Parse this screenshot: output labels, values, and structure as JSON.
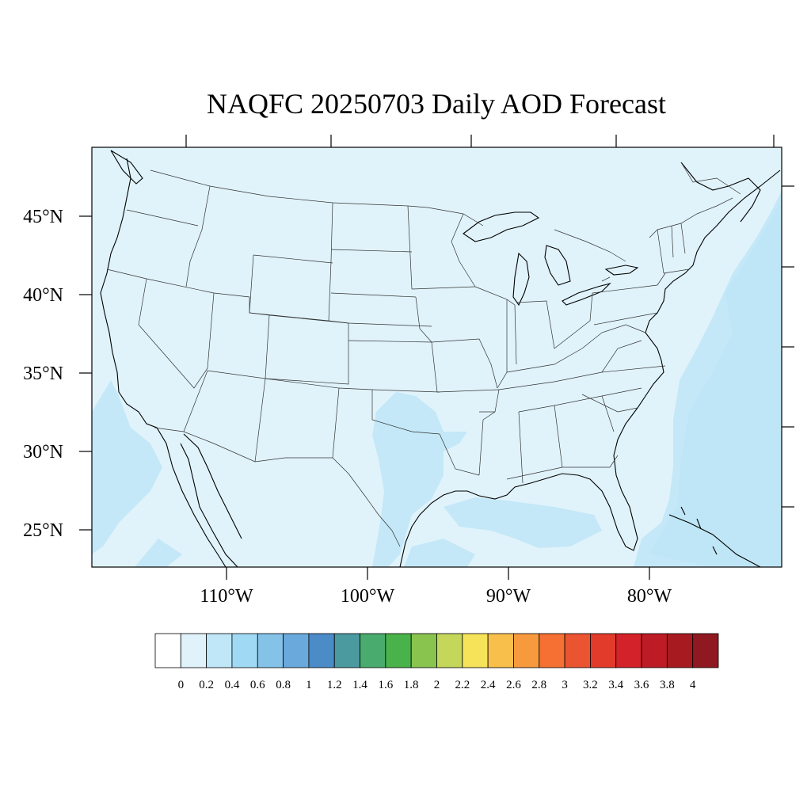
{
  "title": "NAQFC 20250703 Daily AOD Forecast",
  "map": {
    "projection": "lambert-conformal-like (curved parallels)",
    "lat_labels": [
      "45°N",
      "40°N",
      "35°N",
      "30°N",
      "25°N"
    ],
    "lon_labels": [
      "110°W",
      "100°W",
      "90°W",
      "80°W"
    ],
    "background_color": "#e0f3fb",
    "region": "Contiguous United States"
  },
  "colorbar": {
    "labels": [
      "0",
      "0.2",
      "0.4",
      "0.6",
      "0.8",
      "1",
      "1.2",
      "1.4",
      "1.6",
      "1.8",
      "2",
      "2.2",
      "2.4",
      "2.6",
      "2.8",
      "3",
      "3.2",
      "3.4",
      "3.6",
      "3.8",
      "4"
    ],
    "colors": [
      "#ffffff",
      "#e0f3fb",
      "#bfe7f8",
      "#a0d9f4",
      "#84c2e8",
      "#6aa9dc",
      "#4a8bc8",
      "#4a9aa0",
      "#4aab6e",
      "#4ab24a",
      "#88c44e",
      "#c4d75a",
      "#f6e35a",
      "#f8c04a",
      "#f79a3e",
      "#f57032",
      "#ea5430",
      "#e23b2b",
      "#d32229",
      "#bd1b25",
      "#a71a20",
      "#901820"
    ]
  },
  "chart_data": {
    "type": "heatmap",
    "title": "NAQFC 20250703 Daily AOD Forecast",
    "variable": "AOD",
    "levels": [
      0,
      0.2,
      0.4,
      0.6,
      0.8,
      1,
      1.2,
      1.4,
      1.6,
      1.8,
      2,
      2.2,
      2.4,
      2.6,
      2.8,
      3,
      3.2,
      3.4,
      3.6,
      3.8,
      4
    ],
    "dominant_range": [
      0.2,
      0.4
    ]
  }
}
